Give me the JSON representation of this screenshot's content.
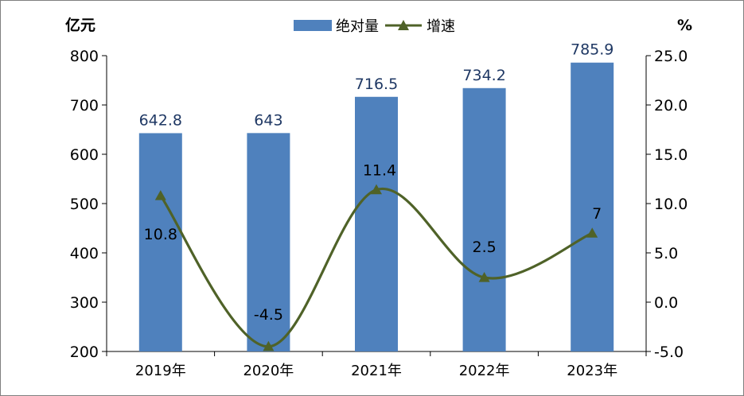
{
  "chart_data": {
    "type": "bar",
    "categories": [
      "2019年",
      "2020年",
      "2021年",
      "2022年",
      "2023年"
    ],
    "series": [
      {
        "name": "绝对量",
        "type": "bar",
        "axis": "left",
        "color": "#4f81bd",
        "values": [
          642.8,
          643,
          716.5,
          734.2,
          785.9
        ],
        "labels": [
          "642.8",
          "643",
          "716.5",
          "734.2",
          "785.9"
        ]
      },
      {
        "name": "增速",
        "type": "line",
        "axis": "right",
        "color": "#4f6228",
        "marker": "triangle",
        "smooth": true,
        "values": [
          10.8,
          -4.5,
          11.4,
          2.5,
          7
        ],
        "labels": [
          "10.8",
          "-4.5",
          "11.4",
          "2.5",
          "7"
        ]
      }
    ],
    "y_left": {
      "unit": "亿元",
      "ylim": [
        200,
        800
      ],
      "ticks": [
        200,
        300,
        400,
        500,
        600,
        700,
        800
      ],
      "tick_labels": [
        "200",
        "300",
        "400",
        "500",
        "600",
        "700",
        "800"
      ]
    },
    "y_right": {
      "unit": "%",
      "ylim": [
        -5,
        25
      ],
      "ticks": [
        -5,
        0,
        5,
        10,
        15,
        20,
        25
      ],
      "tick_labels": [
        "-5.0",
        "0.0",
        "5.0",
        "10.0",
        "15.0",
        "20.0",
        "25.0"
      ]
    },
    "legend": "top-center",
    "grid": false
  }
}
